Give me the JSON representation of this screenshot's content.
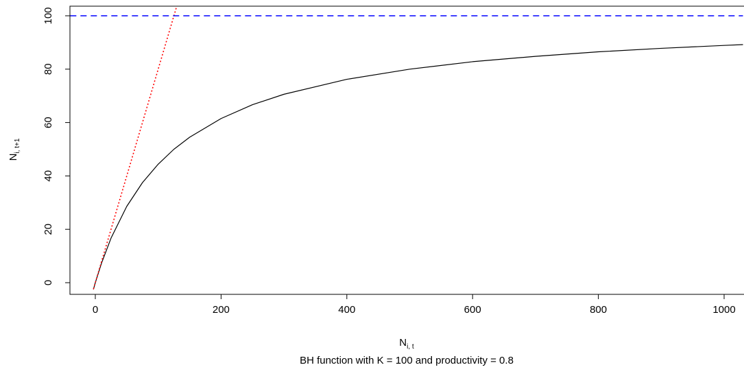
{
  "chart_data": {
    "type": "line",
    "xlabel": {
      "main": "N",
      "sub": "i, t"
    },
    "ylabel": {
      "main": "N",
      "sub": "i, t+1"
    },
    "subtitle": "BH function with K = 100 and productivity = 0.8",
    "xlim": [
      -40,
      1030
    ],
    "ylim": [
      -4.4,
      104
    ],
    "x_ticks": [
      0,
      200,
      400,
      600,
      800,
      1000
    ],
    "x_tick_labels": [
      "0",
      "200",
      "400",
      "600",
      "800",
      "1000"
    ],
    "y_ticks": [
      0,
      20,
      40,
      60,
      80,
      100
    ],
    "y_tick_labels": [
      "0",
      "20",
      "40",
      "60",
      "80",
      "100"
    ],
    "grid": false,
    "series": [
      {
        "style": "solid",
        "color": "#000000",
        "x": [
          -3,
          0,
          10,
          25,
          50,
          75,
          100,
          125,
          150,
          200,
          250,
          300,
          400,
          500,
          600,
          700,
          800,
          900,
          1000,
          1030
        ],
        "y": [
          -2.5,
          0,
          7.4,
          16.7,
          28.6,
          37.5,
          44.4,
          50.0,
          54.5,
          61.5,
          66.7,
          70.6,
          76.2,
          80.0,
          82.8,
          84.8,
          86.5,
          87.8,
          88.9,
          89.2
        ]
      },
      {
        "style": "dotted",
        "color": "#ff0000",
        "x": [
          -3,
          130
        ],
        "y": [
          -2.4,
          104
        ]
      },
      {
        "style": "dashed",
        "color": "#0000ff",
        "x": [
          -40,
          1030
        ],
        "y": [
          100,
          100
        ]
      }
    ]
  }
}
